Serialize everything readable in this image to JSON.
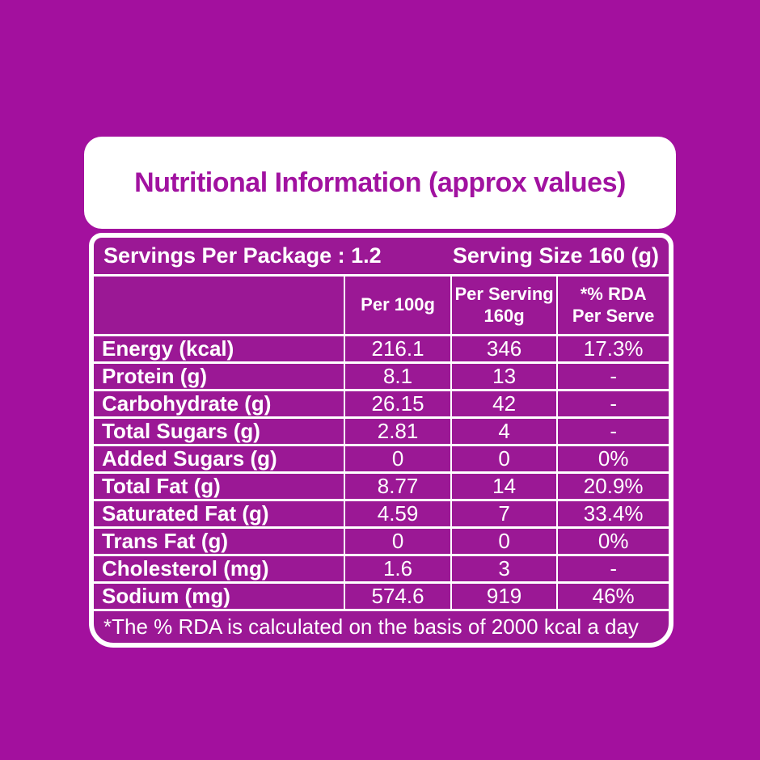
{
  "colors": {
    "background": "#A3109E",
    "panel_fill": "#9B1895",
    "title_text": "#A112A0",
    "table_text": "#FFFFFF",
    "border": "#FFFFFF"
  },
  "header": {
    "title": "Nutritional Information (approx values)"
  },
  "table": {
    "servings_per_package": "Servings Per Package : 1.2",
    "serving_size": "Serving Size 160 (g)",
    "column_headers": {
      "nutrient": "",
      "per_100g": "Per 100g",
      "per_serving": "Per Serving\n160g",
      "rda": "*% RDA\nPer Serve"
    },
    "rows": [
      {
        "label": "Energy (kcal)",
        "per_100g": "216.1",
        "per_serving": "346",
        "rda": "17.3%"
      },
      {
        "label": "Protein (g)",
        "per_100g": "8.1",
        "per_serving": "13",
        "rda": "-"
      },
      {
        "label": "Carbohydrate (g)",
        "per_100g": "26.15",
        "per_serving": "42",
        "rda": "-"
      },
      {
        "label": "Total Sugars (g)",
        "per_100g": "2.81",
        "per_serving": "4",
        "rda": "-"
      },
      {
        "label": "Added Sugars (g)",
        "per_100g": "0",
        "per_serving": "0",
        "rda": "0%"
      },
      {
        "label": "Total Fat (g)",
        "per_100g": "8.77",
        "per_serving": "14",
        "rda": "20.9%"
      },
      {
        "label": "Saturated Fat (g)",
        "per_100g": "4.59",
        "per_serving": "7",
        "rda": "33.4%"
      },
      {
        "label": "Trans Fat (g)",
        "per_100g": "0",
        "per_serving": "0",
        "rda": "0%"
      },
      {
        "label": "Cholesterol (mg)",
        "per_100g": "1.6",
        "per_serving": "3",
        "rda": "-"
      },
      {
        "label": "Sodium (mg)",
        "per_100g": "574.6",
        "per_serving": "919",
        "rda": "46%"
      }
    ],
    "footnote": "*The % RDA is calculated on the basis of 2000 kcal a day"
  }
}
